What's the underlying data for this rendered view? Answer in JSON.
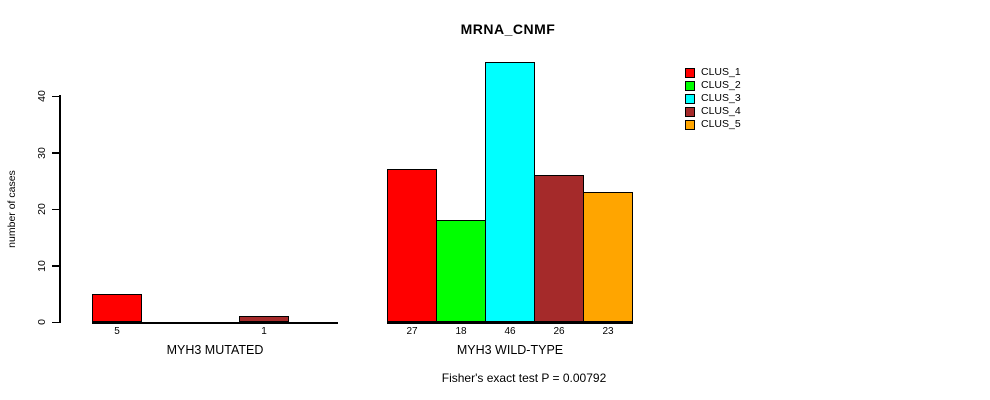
{
  "chart_data": {
    "type": "bar",
    "title": "MRNA_CNMF",
    "ylabel": "number of cases",
    "xlabel": "",
    "ylim": [
      0,
      46
    ],
    "yticks": [
      0,
      10,
      20,
      30,
      40
    ],
    "grid": false,
    "legend_position": "right",
    "annotation": "Fisher's exact test P = 0.00792",
    "categories": [
      "MYH3 MUTATED",
      "MYH3 WILD-TYPE"
    ],
    "series": [
      {
        "name": "CLUS_1",
        "color": "#ff0000",
        "values": [
          5,
          27
        ]
      },
      {
        "name": "CLUS_2",
        "color": "#00ff00",
        "values": [
          0,
          18
        ]
      },
      {
        "name": "CLUS_3",
        "color": "#00ffff",
        "values": [
          0,
          46
        ]
      },
      {
        "name": "CLUS_4",
        "color": "#a52a2a",
        "values": [
          1,
          26
        ]
      },
      {
        "name": "CLUS_5",
        "color": "#ffa500",
        "values": [
          0,
          23
        ]
      }
    ],
    "bar_value_labels": {
      "MYH3 MUTATED": [
        "5",
        "",
        "",
        "1",
        ""
      ],
      "MYH3 WILD-TYPE": [
        "27",
        "18",
        "46",
        "26",
        "23"
      ]
    },
    "colors": {
      "background": "#ffffff",
      "axis": "#000000",
      "text": "#000000"
    }
  }
}
